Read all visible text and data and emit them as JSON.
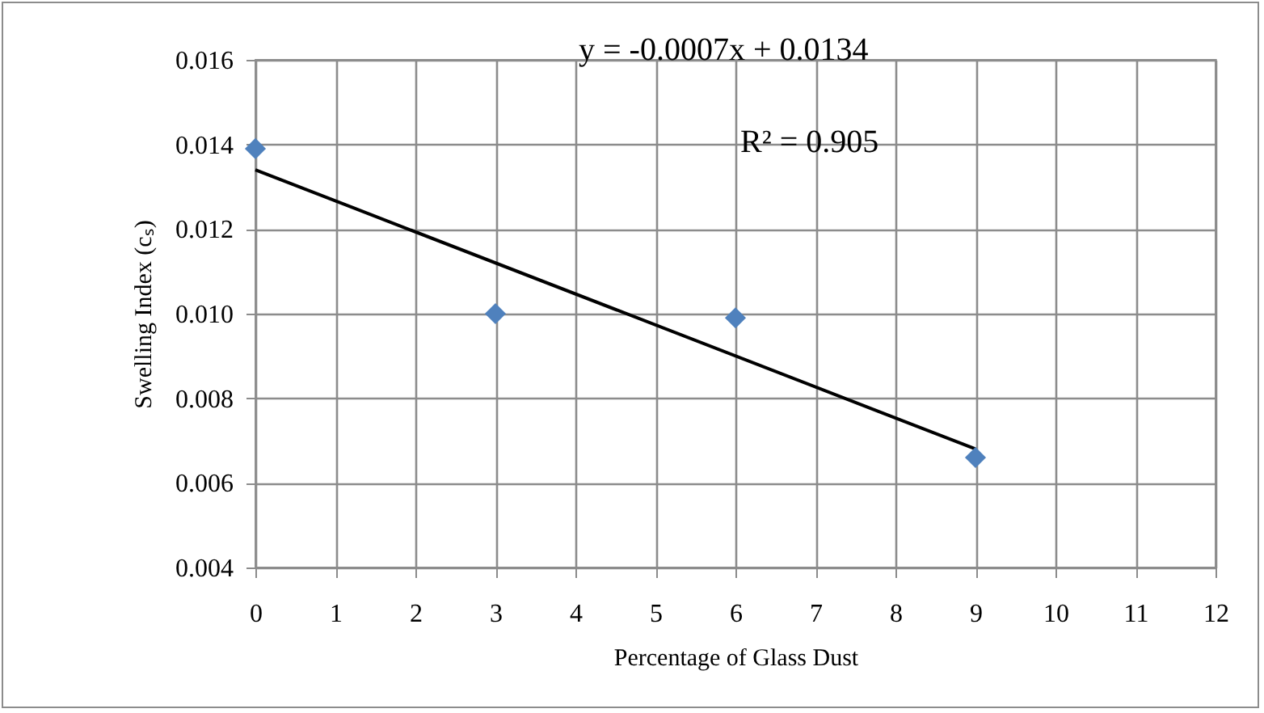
{
  "chart_data": {
    "type": "scatter",
    "xlabel": "Percentage of Glass Dust",
    "ylabel": "Swelling Index (cₛ)",
    "annotations": [
      "y = -0.0007x + 0.0134",
      "R² = 0.905"
    ],
    "series": [
      {
        "color": "#4f81bd",
        "marker": "diamond",
        "x": [
          0,
          3,
          6,
          9
        ],
        "values": [
          0.0139,
          0.01,
          0.0099,
          0.0066
        ]
      },
      {
        "type": "line",
        "color": "#000000",
        "line_style": "solid",
        "x": [
          0,
          9
        ],
        "values": [
          0.0134,
          0.0068
        ]
      }
    ],
    "xlim": [
      0,
      12
    ],
    "xticks": [
      0,
      1,
      2,
      3,
      4,
      5,
      6,
      7,
      8,
      9,
      10,
      11,
      12
    ],
    "ylim": [
      0.004,
      0.016
    ],
    "yticks": [
      0.004,
      0.006,
      0.008,
      {
        "value": 0.01,
        "label": "0.010"
      },
      0.012,
      0.014,
      0.016
    ],
    "grid": true
  }
}
